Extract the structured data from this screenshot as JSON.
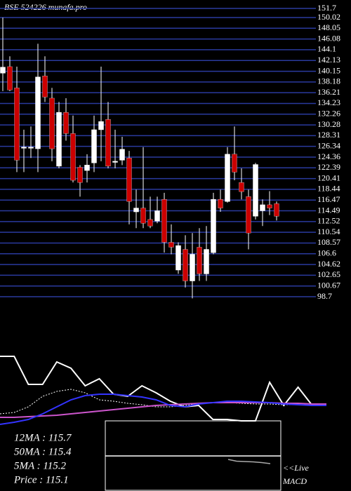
{
  "chart_data": [
    {
      "type": "candlestick",
      "title": "BSE 524226 munafa.pro",
      "ylim": [
        98.7,
        151.7
      ],
      "yticks": [
        151.7,
        150.02,
        148.05,
        146.08,
        144.1,
        142.13,
        140.15,
        138.18,
        136.21,
        134.23,
        132.26,
        130.28,
        128.31,
        126.34,
        124.36,
        122.39,
        120.41,
        118.44,
        116.47,
        114.49,
        112.52,
        110.54,
        108.57,
        106.6,
        104.62,
        102.65,
        100.67,
        98.7
      ],
      "grid": true,
      "grid_color": "#2a3a9e",
      "up_color": "#ffffff",
      "down_color": "#cc0000",
      "candles": [
        [
          139.8,
          150.0,
          136.5,
          140.9
        ],
        [
          141.0,
          142.9,
          136.5,
          136.7
        ],
        [
          137.1,
          141.0,
          121.6,
          123.8
        ],
        [
          126.0,
          129.4,
          121.6,
          126.2
        ],
        [
          126.0,
          130.0,
          124.2,
          126.2
        ],
        [
          125.9,
          145.2,
          121.6,
          139.1
        ],
        [
          139.3,
          142.9,
          134.5,
          135.4
        ],
        [
          135.2,
          137.1,
          123.6,
          125.9
        ],
        [
          122.7,
          134.5,
          122.3,
          132.6
        ],
        [
          132.6,
          135.2,
          127.4,
          128.7
        ],
        [
          128.7,
          132.0,
          119.7,
          120.1
        ],
        [
          122.5,
          122.9,
          117.1,
          119.7
        ],
        [
          121.9,
          124.9,
          119.7,
          122.9
        ],
        [
          123.3,
          132.0,
          121.6,
          129.4
        ],
        [
          129.4,
          141.0,
          123.6,
          130.9
        ],
        [
          131.3,
          134.5,
          122.3,
          122.7
        ],
        [
          123.4,
          129.4,
          122.3,
          123.6
        ],
        [
          123.8,
          128.1,
          122.9,
          125.8
        ],
        [
          124.2,
          125.5,
          112.0,
          116.2
        ],
        [
          114.3,
          118.4,
          111.3,
          115.0
        ],
        [
          115.0,
          126.2,
          111.3,
          112.2
        ],
        [
          112.9,
          117.1,
          111.3,
          111.7
        ],
        [
          112.6,
          117.1,
          112.2,
          114.5
        ],
        [
          116.6,
          117.8,
          106.8,
          108.7
        ],
        [
          108.7,
          112.0,
          106.5,
          107.8
        ],
        [
          103.6,
          108.7,
          102.9,
          108.1
        ],
        [
          107.4,
          110.0,
          100.4,
          101.6
        ],
        [
          101.6,
          110.4,
          98.4,
          106.5
        ],
        [
          107.8,
          111.3,
          101.6,
          102.9
        ],
        [
          102.9,
          111.7,
          101.6,
          107.4
        ],
        [
          106.8,
          117.8,
          106.5,
          116.6
        ],
        [
          116.6,
          118.4,
          114.3,
          115.0
        ],
        [
          116.2,
          126.2,
          116.0,
          124.9
        ],
        [
          124.9,
          130.0,
          120.1,
          121.6
        ],
        [
          119.7,
          122.3,
          116.6,
          118.0
        ],
        [
          117.1,
          118.4,
          107.4,
          110.4
        ],
        [
          113.5,
          123.3,
          112.9,
          123.0
        ],
        [
          114.5,
          116.6,
          111.7,
          115.6
        ],
        [
          115.6,
          118.1,
          113.7,
          115.0
        ],
        [
          115.8,
          116.2,
          112.7,
          113.5
        ]
      ]
    },
    {
      "type": "line",
      "ylim": [
        0,
        110
      ],
      "series": [
        {
          "color": "#ffffff",
          "dash": false,
          "values": [
            102,
            102,
            62,
            62,
            94,
            85,
            60,
            70,
            48,
            45,
            60,
            50,
            38,
            30,
            32,
            12,
            12,
            10,
            10,
            65,
            32,
            58,
            32,
            32
          ]
        },
        {
          "color": "#ffffff",
          "dash": true,
          "values": [
            20,
            22,
            30,
            45,
            52,
            55,
            50,
            40,
            38,
            35,
            33,
            30,
            30,
            32,
            34,
            36,
            36,
            35,
            34,
            34,
            33,
            33,
            32,
            32
          ]
        },
        {
          "color": "#cc55cc",
          "dash": false,
          "values": [
            15,
            15,
            16,
            17,
            18,
            20,
            22,
            24,
            26,
            28,
            30,
            32,
            33,
            34,
            35,
            36,
            36,
            36,
            36,
            36,
            35,
            35,
            34,
            34
          ]
        },
        {
          "color": "#3333ff",
          "dash": false,
          "values": [
            5,
            8,
            12,
            20,
            30,
            40,
            46,
            48,
            48,
            46,
            44,
            40,
            32,
            30,
            34,
            36,
            38,
            38,
            37,
            36,
            34,
            33,
            32,
            32
          ]
        }
      ],
      "annotations": [
        "12MA : 115.7",
        "50MA : 115.4",
        "5MA : 115.2",
        "Price : 115.1"
      ]
    },
    {
      "type": "macd",
      "ylim": [
        -10,
        10
      ],
      "series": [
        {
          "color": "#ffffff",
          "values": [
            0,
            0
          ]
        },
        {
          "color": "#aaaaaa",
          "values": [
            -1,
            -1.5,
            -1.6,
            -1.7,
            -1.9,
            -2.2
          ]
        }
      ],
      "annotations": [
        "<<Live",
        "MACD"
      ]
    }
  ]
}
